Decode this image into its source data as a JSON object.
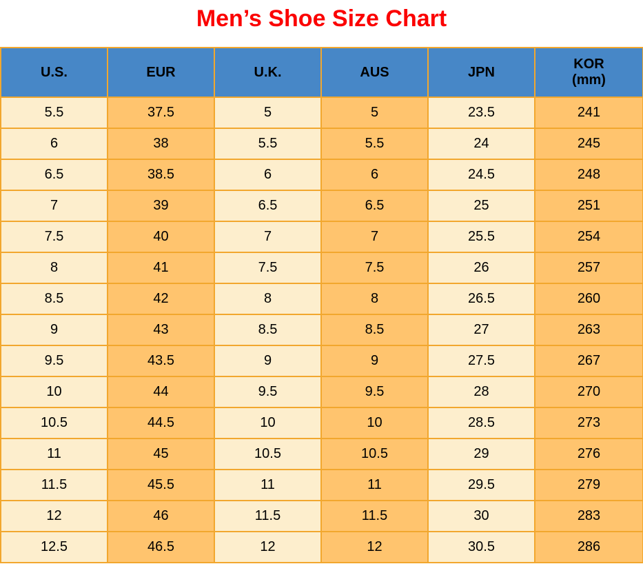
{
  "title": "Men’s Shoe Size Chart",
  "table": {
    "columns": [
      {
        "label": "U.S."
      },
      {
        "label": "EUR"
      },
      {
        "label": "U.K."
      },
      {
        "label": "AUS"
      },
      {
        "label": "JPN"
      },
      {
        "label": "KOR",
        "sub": "(mm)"
      }
    ],
    "rows": [
      [
        "5.5",
        "37.5",
        "5",
        "5",
        "23.5",
        "241"
      ],
      [
        "6",
        "38",
        "5.5",
        "5.5",
        "24",
        "245"
      ],
      [
        "6.5",
        "38.5",
        "6",
        "6",
        "24.5",
        "248"
      ],
      [
        "7",
        "39",
        "6.5",
        "6.5",
        "25",
        "251"
      ],
      [
        "7.5",
        "40",
        "7",
        "7",
        "25.5",
        "254"
      ],
      [
        "8",
        "41",
        "7.5",
        "7.5",
        "26",
        "257"
      ],
      [
        "8.5",
        "42",
        "8",
        "8",
        "26.5",
        "260"
      ],
      [
        "9",
        "43",
        "8.5",
        "8.5",
        "27",
        "263"
      ],
      [
        "9.5",
        "43.5",
        "9",
        "9",
        "27.5",
        "267"
      ],
      [
        "10",
        "44",
        "9.5",
        "9.5",
        "28",
        "270"
      ],
      [
        "10.5",
        "44.5",
        "10",
        "10",
        "28.5",
        "273"
      ],
      [
        "11",
        "45",
        "10.5",
        "10.5",
        "29",
        "276"
      ],
      [
        "11.5",
        "45.5",
        "11",
        "11",
        "29.5",
        "279"
      ],
      [
        "12",
        "46",
        "11.5",
        "11.5",
        "30",
        "283"
      ],
      [
        "12.5",
        "46.5",
        "12",
        "12",
        "30.5",
        "286"
      ]
    ]
  },
  "colors": {
    "header_bg": "#4787c7",
    "cream": "#fdeecd",
    "orange": "#ffc46e",
    "border": "#f2a72e",
    "title": "#fb0000",
    "scroll_track": "#26262b",
    "scroll_thumb": "#9e9e9e"
  },
  "chart_data": {
    "type": "table",
    "title": "Men’s Shoe Size Chart",
    "columns": [
      "U.S.",
      "EUR",
      "U.K.",
      "AUS",
      "JPN",
      "KOR (mm)"
    ],
    "rows": [
      [
        "5.5",
        "37.5",
        "5",
        "5",
        "23.5",
        "241"
      ],
      [
        "6",
        "38",
        "5.5",
        "5.5",
        "24",
        "245"
      ],
      [
        "6.5",
        "38.5",
        "6",
        "6",
        "24.5",
        "248"
      ],
      [
        "7",
        "39",
        "6.5",
        "6.5",
        "25",
        "251"
      ],
      [
        "7.5",
        "40",
        "7",
        "7",
        "25.5",
        "254"
      ],
      [
        "8",
        "41",
        "7.5",
        "7.5",
        "26",
        "257"
      ],
      [
        "8.5",
        "42",
        "8",
        "8",
        "26.5",
        "260"
      ],
      [
        "9",
        "43",
        "8.5",
        "8.5",
        "27",
        "263"
      ],
      [
        "9.5",
        "43.5",
        "9",
        "9",
        "27.5",
        "267"
      ],
      [
        "10",
        "44",
        "9.5",
        "9.5",
        "28",
        "270"
      ],
      [
        "10.5",
        "44.5",
        "10",
        "10",
        "28.5",
        "273"
      ],
      [
        "11",
        "45",
        "10.5",
        "10.5",
        "29",
        "276"
      ],
      [
        "11.5",
        "45.5",
        "11",
        "11",
        "29.5",
        "279"
      ],
      [
        "12",
        "46",
        "11.5",
        "11.5",
        "30",
        "283"
      ],
      [
        "12.5",
        "46.5",
        "12",
        "12",
        "30.5",
        "286"
      ]
    ],
    "column_stripe_colors": [
      "#fdeecd",
      "#ffc46e",
      "#fdeecd",
      "#ffc46e",
      "#fdeecd",
      "#ffc46e"
    ],
    "header_color": "#4787c7",
    "grid": true
  }
}
